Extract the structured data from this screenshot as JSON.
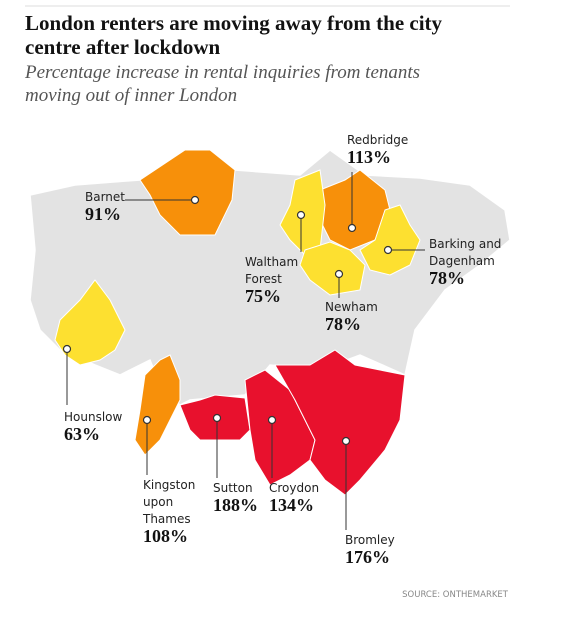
{
  "header": {
    "title_lines": [
      "London renters are moving away from the city",
      "centre after lockdown"
    ],
    "subtitle_lines": [
      "Percentage increase in rental inquiries from tenants",
      "moving out of inner London"
    ]
  },
  "regions": [
    {
      "name_lines": [
        "Barnet"
      ],
      "value": "91%",
      "color": "#f7900a"
    },
    {
      "name_lines": [
        "Redbridge"
      ],
      "value": "113%",
      "color": "#f7900a"
    },
    {
      "name_lines": [
        "Waltham",
        "Forest"
      ],
      "value": "75%",
      "color": "#fde030"
    },
    {
      "name_lines": [
        "Barking and",
        "Dagenham"
      ],
      "value": "78%",
      "color": "#fde030"
    },
    {
      "name_lines": [
        "Newham"
      ],
      "value": "78%",
      "color": "#fde030"
    },
    {
      "name_lines": [
        "Hounslow"
      ],
      "value": "63%",
      "color": "#fde030"
    },
    {
      "name_lines": [
        "Kingston",
        "upon",
        "Thames"
      ],
      "value": "108%",
      "color": "#f7900a"
    },
    {
      "name_lines": [
        "Sutton"
      ],
      "value": "188%",
      "color": "#e8112d"
    },
    {
      "name_lines": [
        "Croydon"
      ],
      "value": "134%",
      "color": "#e8112d"
    },
    {
      "name_lines": [
        "Bromley"
      ],
      "value": "176%",
      "color": "#e8112d"
    }
  ],
  "source": "SOURCE: ONTHEMARKET"
}
